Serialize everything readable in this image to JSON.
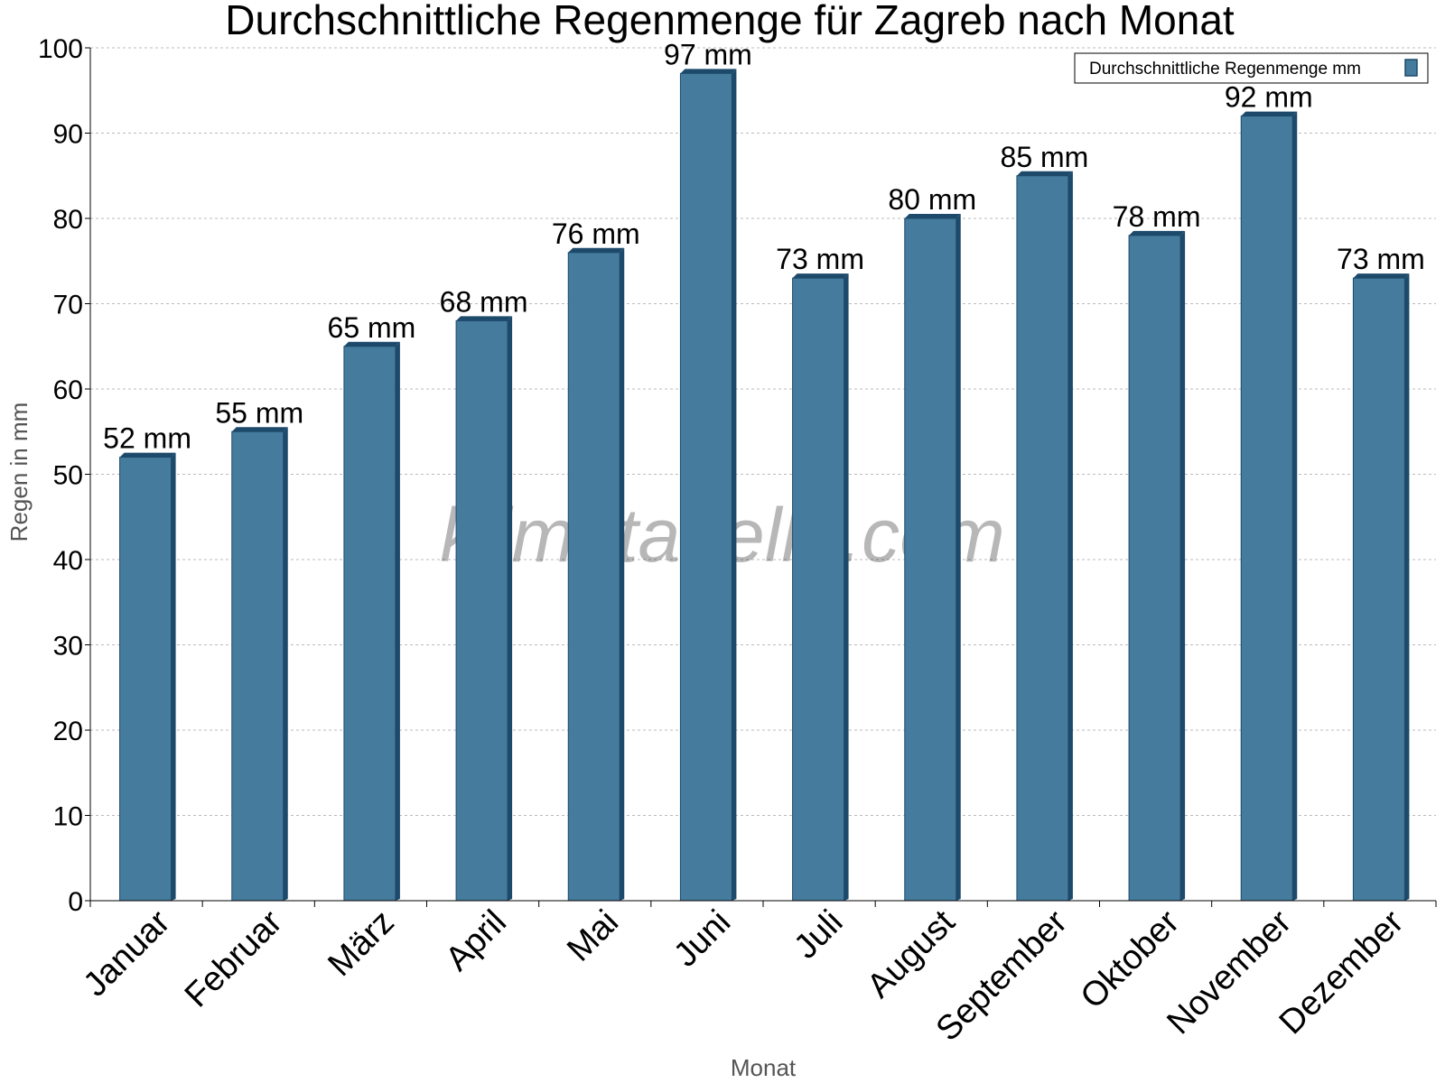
{
  "chart_data": {
    "type": "bar",
    "title": "Durchschnittliche Regenmenge für Zagreb nach Monat",
    "xlabel": "Monat",
    "ylabel": "Regen in mm",
    "ylim": [
      0,
      100
    ],
    "yticks": [
      0,
      10,
      20,
      30,
      40,
      50,
      60,
      70,
      80,
      90,
      100
    ],
    "grid": true,
    "legend_position": "top-right",
    "categories": [
      "Januar",
      "Februar",
      "März",
      "April",
      "Mai",
      "Juni",
      "Juli",
      "August",
      "September",
      "Oktober",
      "November",
      "Dezember"
    ],
    "series": [
      {
        "name": "Durchschnittliche Regenmenge mm",
        "values": [
          52,
          55,
          65,
          68,
          76,
          97,
          73,
          80,
          85,
          78,
          92,
          73
        ],
        "labels": [
          "52 mm",
          "55 mm",
          "65 mm",
          "68 mm",
          "76 mm",
          "97 mm",
          "73 mm",
          "80 mm",
          "85 mm",
          "78 mm",
          "92 mm",
          "73 mm"
        ]
      }
    ],
    "watermark": "klimatabelle.com",
    "colors": {
      "bar": "#457b9d",
      "bar_edge": "#1d4a6b",
      "grid": "#bbbbbb"
    }
  }
}
